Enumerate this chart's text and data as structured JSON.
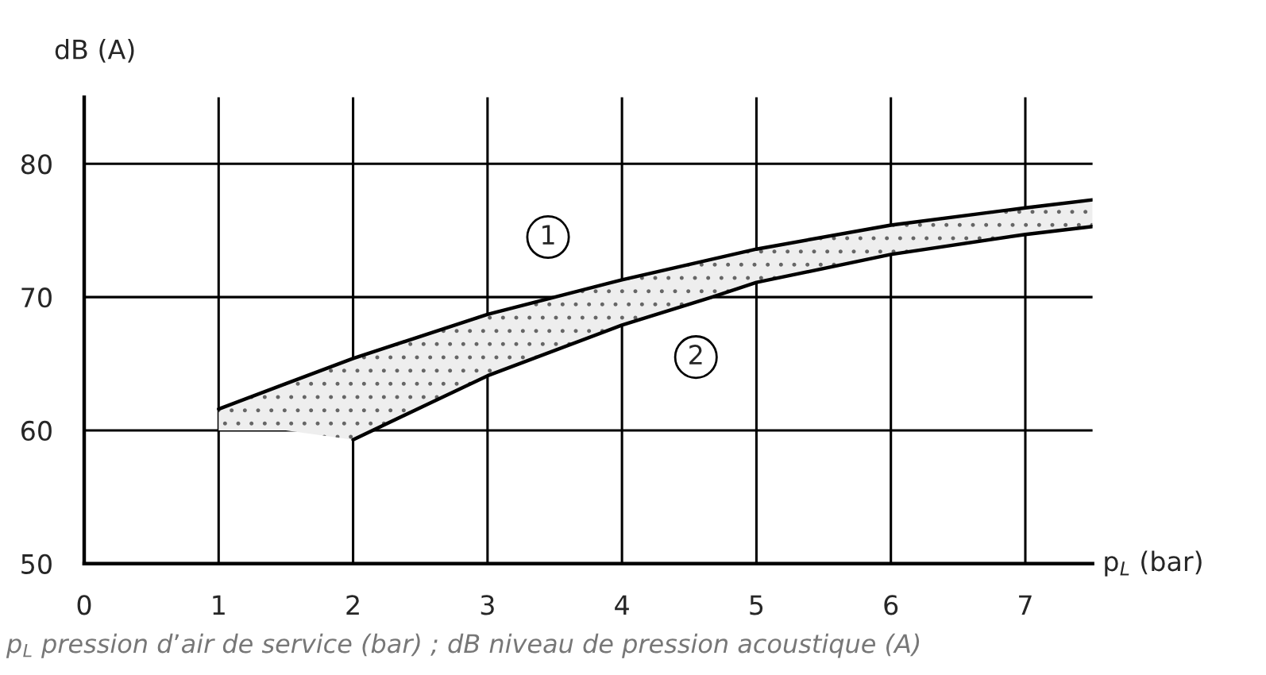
{
  "chart_data": {
    "type": "line",
    "xlabel": "p$_{L}$ (bar)",
    "ylabel": "dB (A)",
    "series": [
      {
        "name": null,
        "color": "#000000",
        "x": [
          1,
          1.5,
          2,
          3,
          3.5,
          4,
          5,
          6,
          7,
          7.5
        ],
        "values": [
          61.6,
          63.5,
          65.4,
          68.7,
          70,
          71.3,
          73.6,
          75.4,
          76.7,
          77.3
        ],
        "lower": [
          60,
          60,
          59.3,
          64.1,
          66.0,
          67.9,
          71.1,
          73.2,
          74.7,
          75.3
        ],
        "upper": [
          61.6,
          63.5,
          65.4,
          68.7,
          70,
          71.3,
          73.6,
          75.4,
          76.7,
          77.3
        ]
      },
      {
        "name": null,
        "color": "#000000",
        "x": [
          2,
          3,
          4,
          4.67,
          5,
          6,
          7,
          7.5
        ],
        "values": [
          59.3,
          64.1,
          67.9,
          70,
          71.1,
          73.2,
          74.7,
          75.3
        ]
      }
    ],
    "xlim": [
      0,
      7.5
    ],
    "xticks": [
      0,
      1,
      2,
      3,
      4,
      5,
      6,
      7
    ],
    "ylim": [
      50,
      85
    ],
    "yticks": [
      50,
      60,
      70,
      80
    ],
    "grid": true,
    "marker": "none",
    "line_style": "solid",
    "annotations": [
      {
        "text": "1",
        "x": 3.45,
        "y": 74.5
      },
      {
        "text": "2",
        "x": 4.55,
        "y": 65.5
      },
      "p$_{L}$ pression d’air de service (bar) ; dB niveau de pression acoustique (A)"
    ]
  }
}
